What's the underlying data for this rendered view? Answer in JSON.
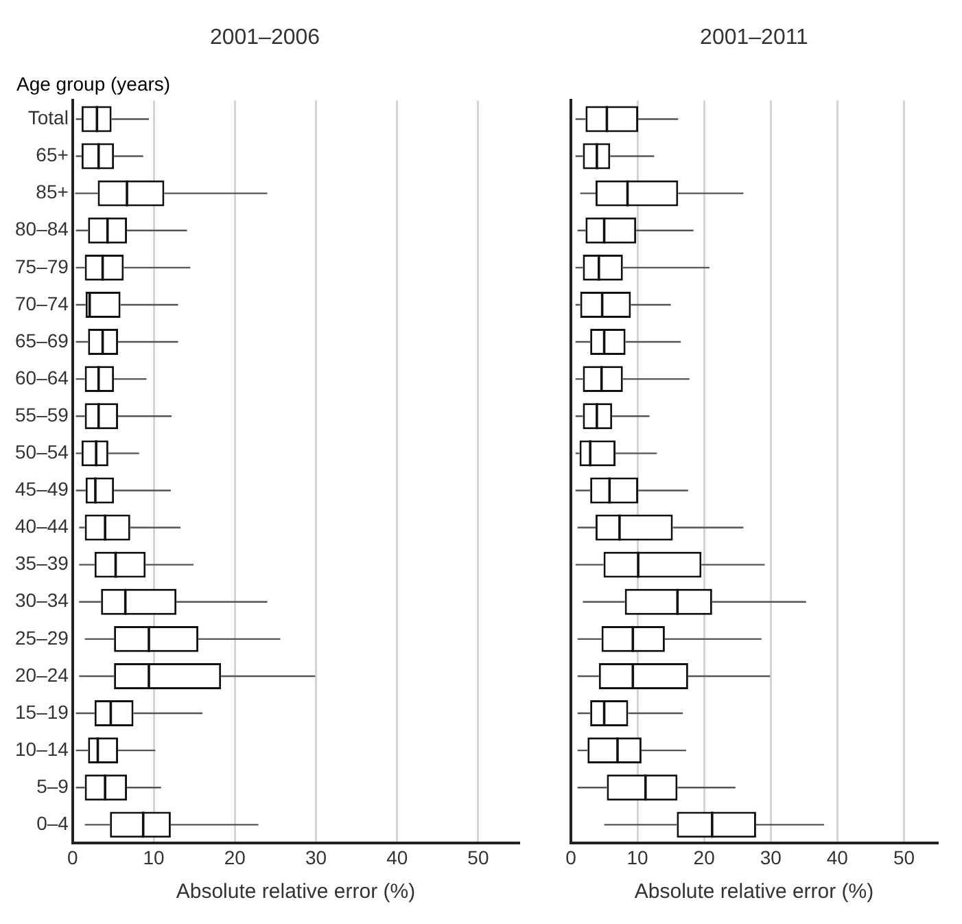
{
  "chart_data": [
    {
      "type": "box",
      "title": "2001–2006",
      "ylabel": "Age group (years)",
      "xlabel": "Absolute relative error (%)",
      "orientation": "horizontal",
      "grid": "x",
      "xlim": [
        0,
        55
      ],
      "xticks": [
        0,
        10,
        20,
        30,
        40,
        50
      ],
      "categories": [
        "Total",
        "65+",
        "85+",
        "80–84",
        "75–79",
        "70–74",
        "65–69",
        "60–64",
        "55–59",
        "50–54",
        "45–49",
        "40–44",
        "35–39",
        "30–34",
        "25–29",
        "20–24",
        "15–19",
        "10–14",
        "5–9",
        "0–4"
      ],
      "boxes": [
        {
          "low": 0.4,
          "q1": 1.1,
          "median": 3.0,
          "q3": 4.8,
          "high": 9.4
        },
        {
          "low": 0.4,
          "q1": 1.1,
          "median": 3.2,
          "q3": 5.1,
          "high": 8.7
        },
        {
          "low": 0.3,
          "q1": 3.1,
          "median": 6.7,
          "q3": 11.3,
          "high": 24.0
        },
        {
          "low": 0.4,
          "q1": 1.9,
          "median": 4.3,
          "q3": 6.7,
          "high": 14.1
        },
        {
          "low": 0.4,
          "q1": 1.5,
          "median": 3.7,
          "q3": 6.3,
          "high": 14.5
        },
        {
          "low": 0.4,
          "q1": 1.6,
          "median": 2.1,
          "q3": 5.9,
          "high": 13.0
        },
        {
          "low": 0.4,
          "q1": 1.9,
          "median": 3.7,
          "q3": 5.6,
          "high": 13.0
        },
        {
          "low": 0.4,
          "q1": 1.5,
          "median": 3.2,
          "q3": 5.1,
          "high": 9.1
        },
        {
          "low": 0.4,
          "q1": 1.5,
          "median": 3.2,
          "q3": 5.6,
          "high": 12.2
        },
        {
          "low": 0.4,
          "q1": 1.1,
          "median": 2.9,
          "q3": 4.4,
          "high": 8.2
        },
        {
          "low": 0.4,
          "q1": 1.6,
          "median": 2.8,
          "q3": 5.1,
          "high": 12.1
        },
        {
          "low": 0.8,
          "q1": 1.5,
          "median": 4.0,
          "q3": 7.1,
          "high": 13.3
        },
        {
          "low": 0.8,
          "q1": 2.7,
          "median": 5.3,
          "q3": 9.0,
          "high": 14.9
        },
        {
          "low": 0.8,
          "q1": 3.5,
          "median": 6.5,
          "q3": 12.8,
          "high": 24.0
        },
        {
          "low": 1.5,
          "q1": 5.1,
          "median": 9.4,
          "q3": 15.5,
          "high": 25.6
        },
        {
          "low": 0.8,
          "q1": 5.1,
          "median": 9.4,
          "q3": 18.3,
          "high": 29.9
        },
        {
          "low": 0.4,
          "q1": 2.7,
          "median": 4.7,
          "q3": 7.5,
          "high": 16.0
        },
        {
          "low": 0.4,
          "q1": 1.9,
          "median": 3.1,
          "q3": 5.6,
          "high": 10.2
        },
        {
          "low": 0.4,
          "q1": 1.5,
          "median": 4.0,
          "q3": 6.7,
          "high": 10.9
        },
        {
          "low": 1.5,
          "q1": 4.6,
          "median": 8.7,
          "q3": 12.1,
          "high": 22.9
        }
      ]
    },
    {
      "type": "box",
      "title": "2001–2011",
      "xlabel": "Absolute relative error (%)",
      "orientation": "horizontal",
      "grid": "x",
      "tick_labels": "x",
      "xlim": [
        0,
        55
      ],
      "xticks": [
        0,
        10,
        20,
        30,
        40,
        50
      ],
      "boxes": [
        {
          "low": 0.7,
          "q1": 2.2,
          "median": 5.4,
          "q3": 10.1,
          "high": 16.1
        },
        {
          "low": 0.7,
          "q1": 1.8,
          "median": 3.9,
          "q3": 5.9,
          "high": 12.5
        },
        {
          "low": 1.4,
          "q1": 3.7,
          "median": 8.5,
          "q3": 16.1,
          "high": 25.9
        },
        {
          "low": 1.0,
          "q1": 2.2,
          "median": 5.0,
          "q3": 9.8,
          "high": 18.4
        },
        {
          "low": 0.7,
          "q1": 1.8,
          "median": 4.2,
          "q3": 7.8,
          "high": 20.8
        },
        {
          "low": 0.7,
          "q1": 1.4,
          "median": 4.7,
          "q3": 9.0,
          "high": 15.0
        },
        {
          "low": 0.7,
          "q1": 2.9,
          "median": 5.0,
          "q3": 8.2,
          "high": 16.5
        },
        {
          "low": 0.7,
          "q1": 1.8,
          "median": 4.6,
          "q3": 7.8,
          "high": 17.8
        },
        {
          "low": 0.7,
          "q1": 1.8,
          "median": 3.9,
          "q3": 6.2,
          "high": 11.8
        },
        {
          "low": 0.7,
          "q1": 1.3,
          "median": 2.9,
          "q3": 6.7,
          "high": 12.9
        },
        {
          "low": 0.7,
          "q1": 2.9,
          "median": 5.8,
          "q3": 10.1,
          "high": 17.6
        },
        {
          "low": 1.0,
          "q1": 3.7,
          "median": 7.3,
          "q3": 15.3,
          "high": 25.9
        },
        {
          "low": 0.7,
          "q1": 4.9,
          "median": 10.1,
          "q3": 19.6,
          "high": 29.1
        },
        {
          "low": 1.8,
          "q1": 8.1,
          "median": 16.0,
          "q3": 21.2,
          "high": 35.3
        },
        {
          "low": 1.0,
          "q1": 4.6,
          "median": 9.3,
          "q3": 14.1,
          "high": 28.6
        },
        {
          "low": 1.0,
          "q1": 4.2,
          "median": 9.3,
          "q3": 17.6,
          "high": 29.9
        },
        {
          "low": 1.0,
          "q1": 2.9,
          "median": 5.0,
          "q3": 8.6,
          "high": 16.8
        },
        {
          "low": 1.0,
          "q1": 2.5,
          "median": 7.0,
          "q3": 10.6,
          "high": 17.3
        },
        {
          "low": 1.0,
          "q1": 5.4,
          "median": 11.2,
          "q3": 16.0,
          "high": 24.7
        },
        {
          "low": 5.0,
          "q1": 15.9,
          "median": 21.2,
          "q3": 27.8,
          "high": 38.0
        }
      ]
    }
  ]
}
